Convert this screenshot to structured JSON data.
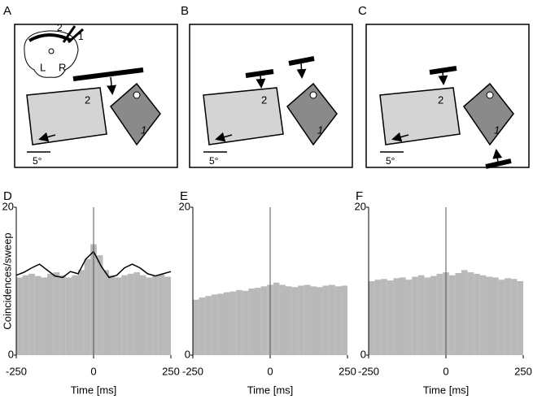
{
  "diagrams": [
    {
      "letter": "A",
      "labels": [
        "2",
        "1"
      ],
      "scale": "5°",
      "head": [
        "2",
        "1",
        "L",
        "R"
      ]
    },
    {
      "letter": "B",
      "labels": [
        "2",
        "1"
      ],
      "scale": "5°"
    },
    {
      "letter": "C",
      "labels": [
        "2",
        "1"
      ],
      "scale": "5°"
    }
  ],
  "chart_data": [
    {
      "type": "histogram",
      "panel": "D",
      "ylabel": "Coincidences/sweep",
      "xlabel": "Time [ms]",
      "color": "#b9b9b9",
      "bins": [
        -250,
        -230,
        -210,
        -190,
        -170,
        -150,
        -130,
        -110,
        -90,
        -70,
        -50,
        -30,
        -10,
        10,
        30,
        50,
        70,
        90,
        110,
        130,
        150,
        170,
        190,
        210,
        230,
        250
      ],
      "values": [
        10.5,
        10.8,
        11,
        10.7,
        10.5,
        11,
        11.2,
        10.8,
        10.5,
        10.8,
        11.5,
        13,
        15,
        13.5,
        11.5,
        10.8,
        10.5,
        10.8,
        11,
        11.2,
        10.8,
        10.5,
        10.7,
        10.9,
        10.6
      ],
      "fit": {
        "x": [
          -250,
          -225,
          -200,
          -175,
          -150,
          -125,
          -100,
          -75,
          -50,
          -25,
          0,
          25,
          50,
          75,
          100,
          125,
          150,
          175,
          200,
          225,
          250
        ],
        "values": [
          10.8,
          11.2,
          11.8,
          12.3,
          11.5,
          10.7,
          10.5,
          11.3,
          11,
          13,
          14,
          12,
          10.5,
          10.8,
          11.8,
          12.3,
          11.8,
          11,
          10.7,
          11,
          11.3
        ]
      },
      "xlim": [
        -250,
        250
      ],
      "ylim": [
        0,
        20
      ],
      "xticks": [
        -250,
        0,
        250
      ],
      "yticks": [
        0,
        20
      ]
    },
    {
      "type": "histogram",
      "panel": "E",
      "xlabel": "Time [ms]",
      "color": "#b9b9b9",
      "bins": [
        -250,
        -230,
        -210,
        -190,
        -170,
        -150,
        -130,
        -110,
        -90,
        -70,
        -50,
        -30,
        -10,
        10,
        30,
        50,
        70,
        90,
        110,
        130,
        150,
        170,
        190,
        210,
        230,
        250
      ],
      "values": [
        7.5,
        7.8,
        8,
        8.2,
        8.3,
        8.5,
        8.6,
        8.8,
        8.7,
        9,
        9.1,
        9.3,
        9.5,
        9.8,
        9.5,
        9.3,
        9.2,
        9.4,
        9.5,
        9.3,
        9.2,
        9.4,
        9.5,
        9.3,
        9.4
      ],
      "xlim": [
        -250,
        250
      ],
      "ylim": [
        0,
        20
      ],
      "xticks": [
        -250,
        0,
        250
      ],
      "yticks": [
        0,
        20
      ]
    },
    {
      "type": "histogram",
      "panel": "F",
      "xlabel": "Time [ms]",
      "color": "#b9b9b9",
      "bins": [
        -250,
        -230,
        -210,
        -190,
        -170,
        -150,
        -130,
        -110,
        -90,
        -70,
        -50,
        -30,
        -10,
        10,
        30,
        50,
        70,
        90,
        110,
        130,
        150,
        170,
        190,
        210,
        230,
        250
      ],
      "values": [
        10,
        10.2,
        10.3,
        10.1,
        10.4,
        10.5,
        10.2,
        10.6,
        10.8,
        10.5,
        10.7,
        11,
        11.2,
        10.8,
        11.1,
        11.5,
        11.2,
        11,
        10.8,
        10.6,
        10.5,
        10.2,
        10.4,
        10.3,
        10
      ],
      "xlim": [
        -250,
        250
      ],
      "ylim": [
        0,
        20
      ],
      "xticks": [
        -250,
        0,
        250
      ],
      "yticks": [
        0,
        20
      ]
    }
  ]
}
